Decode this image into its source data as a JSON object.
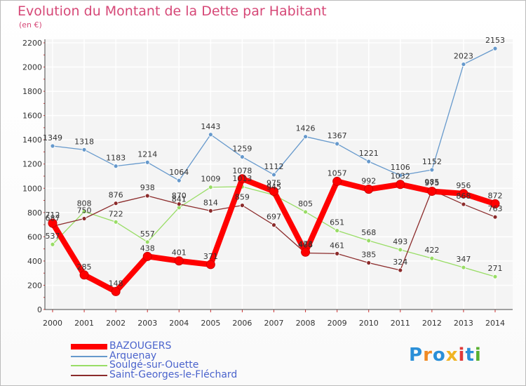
{
  "chart_data": {
    "type": "line",
    "title": "Evolution du Montant de la Dette par Habitant",
    "subtitle": "(en €)",
    "x": [
      "2000",
      "2001",
      "2002",
      "2003",
      "2004",
      "2005",
      "2006",
      "2007",
      "2008",
      "2009",
      "2010",
      "2011",
      "2012",
      "2013",
      "2014"
    ],
    "y_ticks": [
      "0",
      "200",
      "400",
      "600",
      "800",
      "1000",
      "1200",
      "1400",
      "1600",
      "1800",
      "2000",
      "2200"
    ],
    "ylim": [
      0,
      2200
    ],
    "grid": true,
    "legend_placement": "bottom-left",
    "series": [
      {
        "name": "BAZOUGERS",
        "color": "#ff0000",
        "values": [
          712,
          285,
          148,
          438,
          401,
          371,
          1078,
          975,
          473,
          1057,
          992,
          1032,
          975,
          956,
          872
        ],
        "labels": [
          "712",
          "285",
          "148",
          "438",
          "401",
          "371",
          "1078",
          "975",
          "473",
          "1057",
          "992",
          "1032",
          "975",
          "956",
          "872"
        ]
      },
      {
        "name": "Arquenay",
        "color": "#6699cc",
        "values": [
          1349,
          1318,
          1183,
          1214,
          1064,
          1443,
          1259,
          1112,
          1426,
          1367,
          1221,
          1106,
          1152,
          2023,
          2153
        ],
        "labels": [
          "1349",
          "1318",
          "1183",
          "1214",
          "1064",
          "1443",
          "1259",
          "1112",
          "1426",
          "1367",
          "1221",
          "1106",
          "1152",
          "2023",
          "2153"
        ]
      },
      {
        "name": "Soulgé-sur-Ouette",
        "color": "#99dd66",
        "values": [
          537,
          808,
          722,
          557,
          841,
          1009,
          1013,
          945,
          805,
          651,
          568,
          493,
          422,
          347,
          271
        ],
        "labels": [
          "537",
          "808",
          "722",
          "557",
          "841",
          "1009",
          "1013",
          "945",
          "805",
          "651",
          "568",
          "493",
          "422",
          "347",
          "271"
        ]
      },
      {
        "name": "Saint-Georges-le-Fléchard",
        "color": "#8b2b2b",
        "values": [
          687,
          750,
          876,
          938,
          870,
          814,
          859,
          697,
          466,
          461,
          385,
          324,
          985,
          868,
          763
        ],
        "labels": [
          "687",
          "750",
          "876",
          "938",
          "870",
          "814",
          "859",
          "697",
          "466",
          "461",
          "385",
          "324",
          "985",
          "868",
          "763"
        ]
      }
    ]
  },
  "logo": {
    "text": "Proxiti",
    "letters": [
      "P",
      "r",
      "o",
      "x",
      "i",
      "t",
      "i"
    ],
    "colors": [
      "#2a8fd8",
      "#f08a24",
      "#2a8fd8",
      "#f0b424",
      "#e03a3a",
      "#2a8fd8",
      "#58b030"
    ]
  }
}
